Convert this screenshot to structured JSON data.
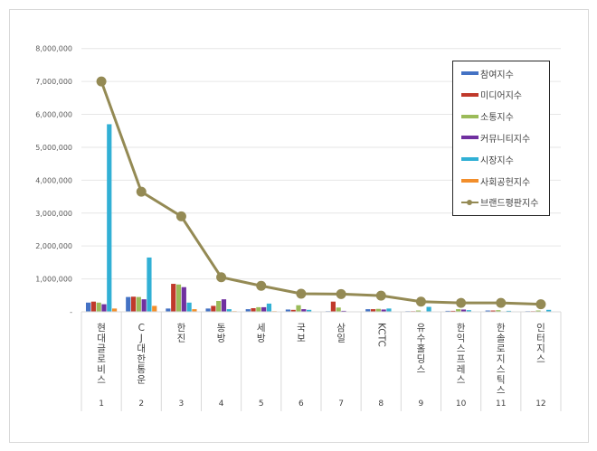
{
  "chart_data": {
    "type": "bar+line",
    "title": "",
    "xlabel": "",
    "ylabel": "",
    "ylim": [
      0,
      8000000
    ],
    "yticks": [
      "-",
      "1,000,000",
      "2,000,000",
      "3,000,000",
      "4,000,000",
      "5,000,000",
      "6,000,000",
      "7,000,000",
      "8,000,000"
    ],
    "grid": true,
    "legend_position": "right-inside",
    "categories": [
      "현대글로비스",
      "CJ대한통운",
      "한진",
      "동방",
      "세방",
      "국보",
      "삼일",
      "KCTC",
      "유수홀딩스",
      "한익스프레스",
      "한솔로지스틱스",
      "인터지스"
    ],
    "category_numbers": [
      "1",
      "2",
      "3",
      "4",
      "5",
      "6",
      "7",
      "8",
      "9",
      "10",
      "11",
      "12"
    ],
    "series": [
      {
        "name": "참여지수",
        "type": "bar",
        "color": "#4472c4",
        "values": [
          280000,
          450000,
          100000,
          100000,
          80000,
          70000,
          20000,
          80000,
          20000,
          30000,
          40000,
          20000
        ]
      },
      {
        "name": "미디어지수",
        "type": "bar",
        "color": "#c0392b",
        "values": [
          310000,
          460000,
          850000,
          180000,
          110000,
          60000,
          310000,
          80000,
          20000,
          30000,
          40000,
          20000
        ]
      },
      {
        "name": "소통지수",
        "type": "bar",
        "color": "#9bbb59",
        "values": [
          280000,
          450000,
          830000,
          330000,
          140000,
          200000,
          130000,
          90000,
          40000,
          80000,
          50000,
          40000
        ]
      },
      {
        "name": "커뮤니티지수",
        "type": "bar",
        "color": "#7030a0",
        "values": [
          230000,
          380000,
          750000,
          380000,
          140000,
          80000,
          30000,
          70000,
          5000,
          70000,
          10000,
          10000
        ]
      },
      {
        "name": "시장지수",
        "type": "bar",
        "color": "#31b0d5",
        "values": [
          5700000,
          1650000,
          280000,
          80000,
          250000,
          60000,
          10000,
          100000,
          150000,
          50000,
          30000,
          60000
        ]
      },
      {
        "name": "사회공헌지수",
        "type": "bar",
        "color": "#f28e2b",
        "values": [
          100000,
          180000,
          80000,
          20000,
          20000,
          10000,
          5000,
          10000,
          5000,
          5000,
          5000,
          5000
        ]
      },
      {
        "name": "브랜드평판지수",
        "type": "line",
        "color": "#948a54",
        "values": [
          7000000,
          3650000,
          2900000,
          1050000,
          790000,
          550000,
          540000,
          490000,
          310000,
          270000,
          270000,
          230000
        ]
      }
    ]
  }
}
